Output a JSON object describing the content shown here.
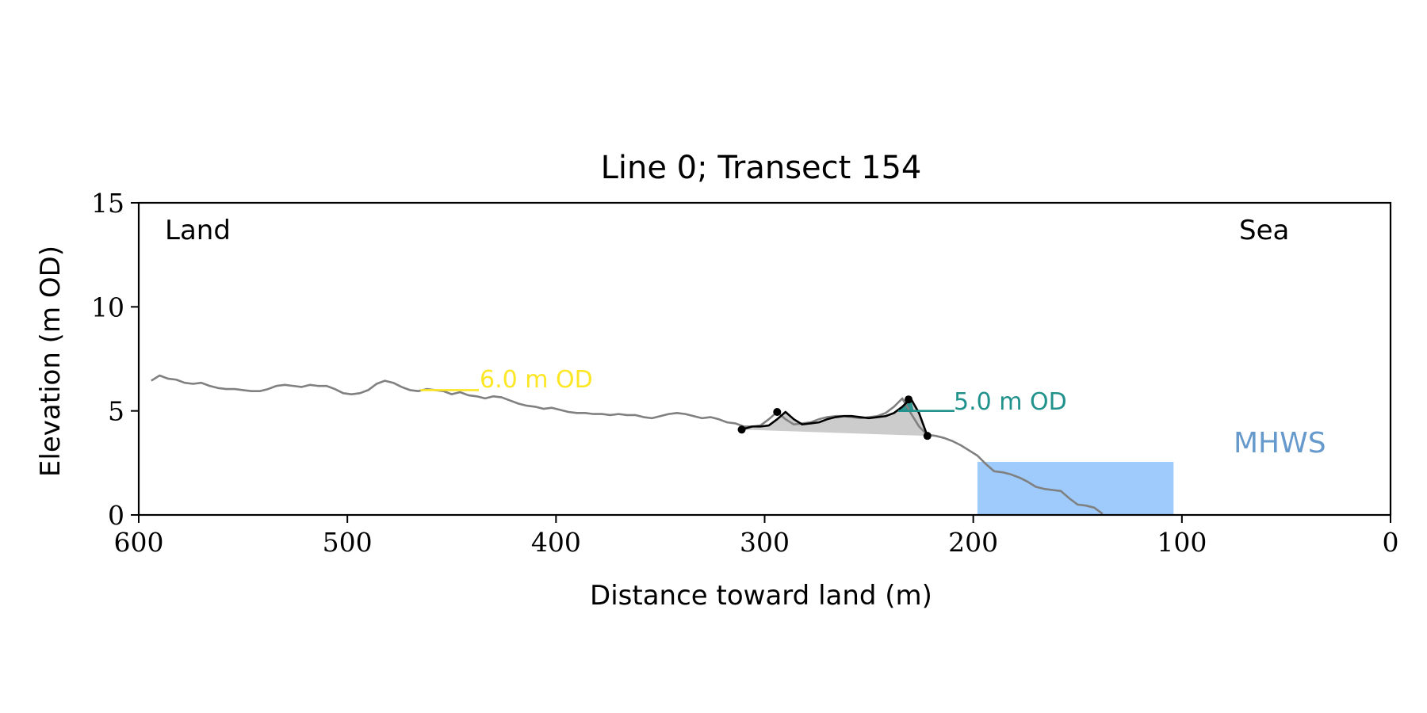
{
  "chart_data": {
    "type": "line",
    "title": "Line 0; Transect 154",
    "xlabel": "Distance toward land (m)",
    "ylabel": "Elevation (m OD)",
    "xlim": [
      600,
      0
    ],
    "ylim": [
      0,
      15
    ],
    "xticks": [
      600,
      500,
      400,
      300,
      200,
      100,
      0
    ],
    "yticks": [
      0,
      5,
      10,
      15
    ],
    "grid": false,
    "corner_labels": {
      "left": "Land",
      "right": "Sea"
    },
    "colors": {
      "profile": "#808080",
      "dune": "#000000",
      "dune_fill": "#cccccc",
      "level_6": "#fde725",
      "level_5": "#21918c",
      "mhws": "#9ecbfc",
      "mhws_label": "#6699cc"
    },
    "profile": {
      "x": [
        594,
        590,
        586,
        582,
        578,
        574,
        570,
        566,
        562,
        558,
        554,
        550,
        546,
        542,
        538,
        534,
        530,
        526,
        522,
        518,
        514,
        510,
        506,
        502,
        498,
        494,
        490,
        486,
        482,
        478,
        474,
        470,
        466,
        462,
        458,
        454,
        450,
        446,
        442,
        438,
        434,
        430,
        426,
        422,
        418,
        414,
        410,
        406,
        402,
        398,
        394,
        390,
        386,
        382,
        378,
        374,
        370,
        366,
        362,
        358,
        354,
        350,
        346,
        342,
        338,
        334,
        330,
        326,
        322,
        318,
        314,
        310,
        306,
        302,
        298,
        294,
        290,
        286,
        282,
        278,
        274,
        270,
        266,
        262,
        258,
        254,
        250,
        246,
        242,
        238,
        234,
        230,
        226,
        222,
        218,
        214,
        210,
        206,
        202,
        198,
        194,
        190,
        186,
        182,
        178,
        174,
        170,
        166,
        162,
        158,
        154,
        150,
        146,
        142,
        138
      ],
      "y": [
        6.45,
        6.7,
        6.55,
        6.5,
        6.35,
        6.3,
        6.35,
        6.2,
        6.1,
        6.05,
        6.05,
        6.0,
        5.95,
        5.95,
        6.05,
        6.2,
        6.25,
        6.2,
        6.15,
        6.25,
        6.2,
        6.2,
        6.05,
        5.85,
        5.8,
        5.85,
        6.0,
        6.3,
        6.45,
        6.35,
        6.15,
        6.0,
        5.95,
        6.05,
        6.0,
        5.95,
        5.8,
        5.9,
        5.75,
        5.7,
        5.6,
        5.7,
        5.65,
        5.5,
        5.35,
        5.25,
        5.2,
        5.1,
        5.15,
        5.05,
        4.95,
        4.9,
        4.9,
        4.85,
        4.85,
        4.8,
        4.85,
        4.8,
        4.8,
        4.7,
        4.65,
        4.75,
        4.85,
        4.9,
        4.85,
        4.75,
        4.65,
        4.7,
        4.6,
        4.45,
        4.4,
        4.25,
        4.25,
        4.3,
        4.6,
        4.95,
        4.6,
        4.35,
        4.4,
        4.45,
        4.6,
        4.7,
        4.75,
        4.75,
        4.7,
        4.65,
        4.7,
        4.75,
        4.9,
        5.2,
        5.6,
        4.9,
        4.25,
        3.85,
        3.8,
        3.7,
        3.55,
        3.35,
        3.1,
        2.85,
        2.45,
        2.1,
        2.05,
        1.95,
        1.8,
        1.6,
        1.35,
        1.25,
        1.2,
        1.15,
        0.8,
        0.5,
        0.45,
        0.35,
        0.05
      ]
    },
    "dune": {
      "x": [
        311,
        306,
        302,
        298,
        294,
        290,
        286,
        282,
        278,
        274,
        270,
        266,
        262,
        258,
        254,
        250,
        246,
        242,
        238,
        234,
        230,
        226,
        222
      ],
      "y": [
        4.1,
        4.25,
        4.25,
        4.3,
        4.6,
        4.95,
        4.6,
        4.35,
        4.4,
        4.45,
        4.6,
        4.7,
        4.75,
        4.75,
        4.7,
        4.65,
        4.7,
        4.75,
        4.9,
        5.2,
        5.6,
        4.9,
        3.8
      ],
      "base": {
        "x": [
          311,
          222
        ],
        "y": [
          4.1,
          3.8
        ]
      },
      "points": {
        "x": [
          311,
          294,
          231,
          222
        ],
        "y": [
          4.1,
          4.95,
          5.55,
          3.8
        ]
      }
    },
    "levels": [
      {
        "label": "6.0 m OD",
        "value": 6.0,
        "x_range": [
          465,
          437
        ]
      },
      {
        "label": "5.0 m OD",
        "value": 5.0,
        "x_range": [
          236,
          209
        ]
      }
    ],
    "mhws": {
      "label": "MHWS",
      "value": 2.55,
      "x_range": [
        198,
        104
      ]
    }
  }
}
